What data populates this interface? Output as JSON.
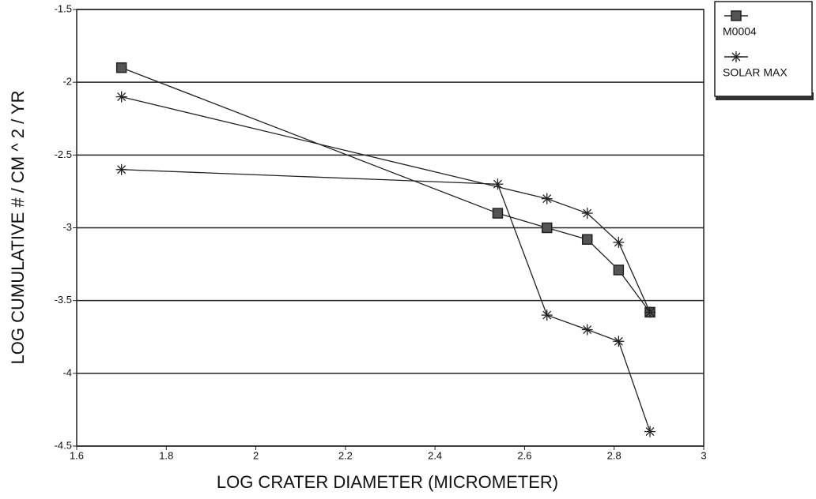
{
  "chart_data": {
    "type": "line",
    "x_label": "LOG CRATER DIAMETER (MICROMETER)",
    "y_label": "LOG CUMULATIVE # / CM ^ 2 / YR",
    "xlim": [
      1.6,
      3
    ],
    "xticks": [
      1.6,
      1.8,
      2,
      2.2,
      2.4,
      2.6,
      2.8,
      3
    ],
    "ylim": [
      -4.5,
      -1.5
    ],
    "yticks": [
      -4.5,
      -4,
      -3.5,
      -3,
      -2.5,
      -2,
      -1.5
    ],
    "grid": true,
    "legend": "right",
    "series": [
      {
        "name": "M0004",
        "color": "#222222",
        "marker": "square",
        "x": [
          1.7,
          2.54,
          2.65,
          2.74,
          2.81,
          2.88
        ],
        "values": [
          -1.9,
          -2.9,
          -3.0,
          -3.08,
          -3.29,
          -3.58
        ]
      },
      {
        "name": "SOLAR MAX",
        "color": "#222222",
        "marker": "star",
        "x": [
          1.7,
          2.65,
          2.74,
          2.81,
          2.88,
          null,
          1.7,
          2.54,
          2.65,
          2.74,
          2.81,
          2.88
        ],
        "values": [
          -2.1,
          -2.8,
          -2.9,
          -3.1,
          -3.58,
          null,
          -2.6,
          -2.7,
          -3.6,
          -3.7,
          -3.78,
          -4.4
        ]
      }
    ]
  }
}
